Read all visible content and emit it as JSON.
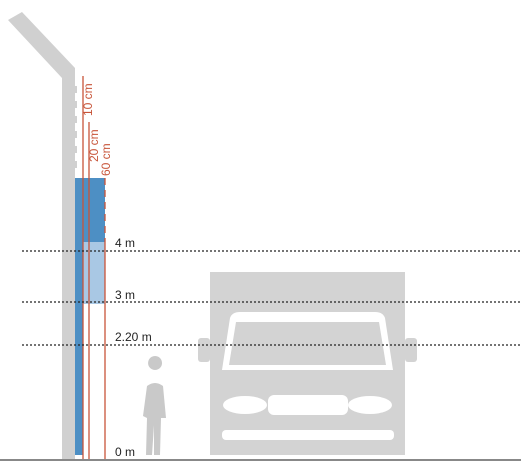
{
  "labels": {
    "offsets": [
      "10 cm",
      "20 cm",
      "60 cm"
    ],
    "heights": [
      "4 m",
      "3 m",
      "2.20 m",
      "0 m"
    ]
  }
}
